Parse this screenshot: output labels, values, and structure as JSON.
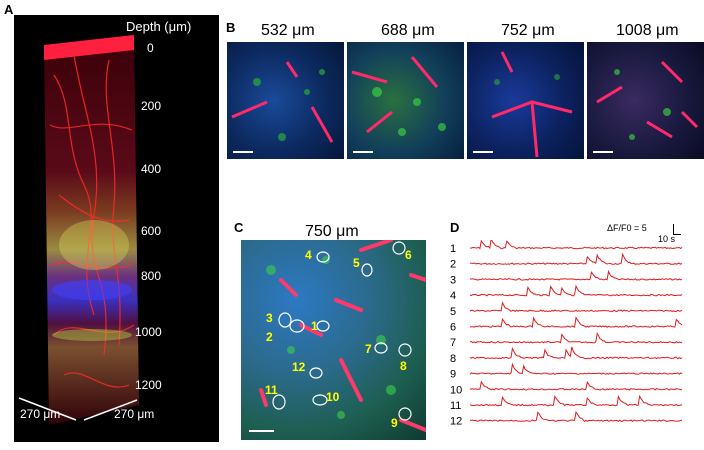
{
  "panel_a": {
    "letter": "A",
    "depth_title": "Depth (μm)",
    "depth_ticks": [
      "0",
      "200",
      "400",
      "600",
      "800",
      "1000",
      "1200"
    ],
    "width_label_left": "270 μm",
    "width_label_right": "270 μm"
  },
  "panel_b": {
    "letter": "B",
    "depths": [
      "532 μm",
      "688 μm",
      "752 μm",
      "1008 μm"
    ]
  },
  "panel_c": {
    "letter": "C",
    "depth": "750 μm",
    "cells": [
      "1",
      "2",
      "3",
      "4",
      "5",
      "6",
      "7",
      "8",
      "9",
      "10",
      "11",
      "12"
    ]
  },
  "panel_d": {
    "letter": "D",
    "scale_dff": "ΔF/F0 = 5",
    "scale_time": "10 s",
    "traces": [
      "1",
      "2",
      "3",
      "4",
      "5",
      "6",
      "7",
      "8",
      "9",
      "10",
      "11",
      "12"
    ],
    "trace_color": "#e41a1c"
  }
}
